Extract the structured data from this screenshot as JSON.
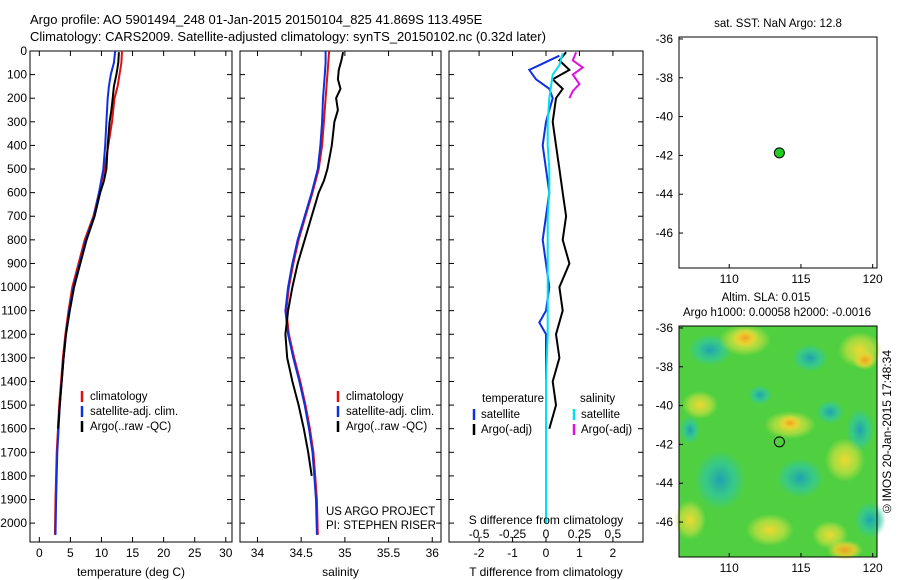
{
  "header": {
    "title_line1": "Argo profile: AO 5901494_248 01-Jan-2015 20150104_825 41.869S 113.495E",
    "title_line2": "Climatology: CARS2009. Satellite-adjusted climatology: synTS_20150102.nc (0.32d later)"
  },
  "credit": "US ARGO PROJECT",
  "credit_pi": "PI: STEPHEN RISER",
  "stamp": "©IMOS 20-Jan-2015 17:48:34",
  "colors": {
    "climatology": "#e01010",
    "satellite": "#1030e0",
    "argo": "#000000",
    "sal_sat": "#00e0f0",
    "sal_argo": "#e010e0",
    "map_dot": "#22cc22"
  },
  "chart_data": [
    {
      "id": "temperature",
      "type": "line",
      "xlabel": "temperature (deg C)",
      "ylabel": "",
      "xlim": [
        -1.5,
        31
      ],
      "ylim": [
        2080,
        0
      ],
      "xticks": [
        0,
        5,
        10,
        15,
        20,
        25,
        30
      ],
      "yticks": [
        0,
        100,
        200,
        300,
        400,
        500,
        600,
        700,
        800,
        900,
        1000,
        1100,
        1200,
        1300,
        1400,
        1500,
        1600,
        1700,
        1800,
        1900,
        2000
      ],
      "legend": [
        "climatology",
        "satellite-adj. clim.",
        "Argo(..raw -QC)"
      ],
      "series": [
        {
          "name": "climatology",
          "color": "#e01010",
          "x": [
            13.3,
            13.2,
            12.9,
            12.6,
            12.1,
            11.7,
            11.1,
            10.5,
            9.6,
            8.7,
            7.3,
            6.3,
            5.3,
            4.7,
            4.2,
            3.8,
            3.5,
            3.2,
            3.0,
            2.8,
            2.7,
            2.6,
            2.5
          ],
          "y": [
            0,
            50,
            100,
            150,
            200,
            300,
            400,
            500,
            600,
            700,
            800,
            900,
            1000,
            1100,
            1200,
            1300,
            1400,
            1500,
            1600,
            1700,
            1800,
            1900,
            2050
          ]
        },
        {
          "name": "satellite-adj. clim.",
          "color": "#1030e0",
          "x": [
            12.2,
            12.0,
            11.5,
            11.2,
            11.0,
            10.8,
            10.6,
            10.3,
            9.6,
            8.8,
            7.5,
            6.5,
            5.5,
            4.8,
            4.3,
            3.9,
            3.6,
            3.3,
            3.1,
            2.9,
            2.8,
            2.7,
            2.6
          ],
          "y": [
            0,
            50,
            100,
            150,
            200,
            300,
            400,
            500,
            600,
            700,
            800,
            900,
            1000,
            1100,
            1200,
            1300,
            1400,
            1500,
            1600,
            1700,
            1800,
            1900,
            2050
          ]
        },
        {
          "name": "Argo(..raw -QC)",
          "color": "#000000",
          "x": [
            12.8,
            12.7,
            12.4,
            12.0,
            11.8,
            11.6,
            11.3,
            11.0,
            10.8,
            10.4,
            9.8,
            8.9,
            7.6,
            6.6,
            5.6,
            4.9,
            4.3,
            3.9,
            3.6,
            3.3,
            3.0
          ],
          "y": [
            5,
            50,
            100,
            150,
            200,
            250,
            300,
            400,
            500,
            550,
            600,
            700,
            800,
            900,
            1000,
            1100,
            1200,
            1300,
            1400,
            1500,
            1600
          ]
        }
      ]
    },
    {
      "id": "salinity",
      "type": "line",
      "xlabel": "salinity",
      "ylabel": "",
      "xlim": [
        33.8,
        36.1
      ],
      "ylim": [
        2080,
        0
      ],
      "xticks": [
        34,
        34.5,
        35,
        35.5,
        36
      ],
      "xtick_labels": [
        "34",
        "34.5",
        "35",
        "35.5",
        "36"
      ],
      "legend": [
        "climatology",
        "satellite-adj. clim.",
        "Argo(..raw -QC)"
      ],
      "series": [
        {
          "name": "climatology",
          "color": "#e01010",
          "x": [
            34.82,
            34.81,
            34.8,
            34.79,
            34.78,
            34.76,
            34.74,
            34.7,
            34.63,
            34.55,
            34.47,
            34.41,
            34.36,
            34.33,
            34.36,
            34.42,
            34.49,
            34.55,
            34.6,
            34.64,
            34.66,
            34.68,
            34.69
          ],
          "y": [
            0,
            50,
            100,
            150,
            200,
            300,
            400,
            500,
            600,
            700,
            800,
            900,
            1000,
            1100,
            1200,
            1300,
            1400,
            1500,
            1600,
            1700,
            1800,
            1900,
            2050
          ]
        },
        {
          "name": "satellite-adj. clim.",
          "color": "#1030e0",
          "x": [
            34.78,
            34.78,
            34.77,
            34.76,
            34.75,
            34.74,
            34.72,
            34.69,
            34.62,
            34.54,
            34.46,
            34.4,
            34.35,
            34.32,
            34.35,
            34.41,
            34.48,
            34.54,
            34.59,
            34.63,
            34.65,
            34.67,
            34.68
          ],
          "y": [
            0,
            50,
            100,
            150,
            200,
            300,
            400,
            500,
            600,
            700,
            800,
            900,
            1000,
            1100,
            1200,
            1300,
            1400,
            1500,
            1600,
            1700,
            1800,
            1900,
            2050
          ]
        },
        {
          "name": "Argo(..raw -QC)",
          "color": "#000000",
          "x": [
            34.98,
            34.96,
            34.93,
            34.92,
            34.95,
            34.9,
            34.92,
            34.88,
            34.85,
            34.8,
            34.76,
            34.7,
            34.62,
            34.54,
            34.46,
            34.4,
            34.35,
            34.32,
            34.34,
            34.4,
            34.47,
            34.53,
            34.58,
            34.62
          ],
          "y": [
            5,
            40,
            80,
            120,
            160,
            200,
            250,
            300,
            400,
            500,
            550,
            600,
            700,
            800,
            900,
            1000,
            1100,
            1200,
            1300,
            1400,
            1500,
            1600,
            1700,
            1800
          ]
        }
      ]
    },
    {
      "id": "difference",
      "type": "line",
      "xlabel": "T difference from climatology",
      "xlabel2": "S difference from climatology",
      "xlim": [
        -2.9,
        2.9
      ],
      "ylim": [
        2080,
        0
      ],
      "xticks": [
        -2,
        -1,
        0,
        1,
        2
      ],
      "xticks_top": [
        -0.5,
        -0.25,
        0,
        0.25,
        0.5
      ],
      "xticks_top_labels": [
        "-0.5",
        "-0.25",
        "0",
        "0.25",
        "0.5"
      ],
      "legend_title_t": "temperature",
      "legend_title_s": "salinity",
      "legend": [
        "satellite",
        "Argo(-adj)"
      ],
      "series": [
        {
          "name": "T satellite",
          "color": "#1030e0",
          "x": [
            0.4,
            -0.2,
            -0.5,
            -0.3,
            0.1,
            0.2,
            0.0,
            -0.1,
            0.0,
            0.1,
            0.0,
            -0.1,
            0.0,
            0.1,
            0.0,
            -0.2,
            0.0,
            0.0,
            0.0,
            0.0,
            0.0,
            0.0
          ],
          "y": [
            20,
            60,
            80,
            120,
            160,
            200,
            300,
            400,
            500,
            600,
            700,
            800,
            900,
            1000,
            1100,
            1150,
            1200,
            1300,
            1400,
            1600,
            1800,
            2000
          ]
        },
        {
          "name": "T Argo(-adj)",
          "color": "#000000",
          "x": [
            0.6,
            0.4,
            0.7,
            0.2,
            0.5,
            0.3,
            0.2,
            0.3,
            0.4,
            0.5,
            0.6,
            0.5,
            0.7,
            0.4,
            0.5,
            0.3,
            0.4,
            0.2,
            0.3,
            0.2,
            0.1
          ],
          "y": [
            5,
            40,
            80,
            120,
            160,
            200,
            300,
            400,
            500,
            600,
            700,
            800,
            900,
            1000,
            1100,
            1200,
            1300,
            1400,
            1500,
            1550,
            1600
          ]
        },
        {
          "name": "S satellite",
          "color": "#00e0f0",
          "x": [
            0.5,
            0.4,
            0.2,
            0.15,
            0.1,
            0.05,
            0.05,
            0.1,
            0.1,
            0.05,
            0.05,
            0.05,
            0.05,
            0.05,
            0.05,
            0.0,
            0.0,
            0.0,
            0.0,
            0.0
          ],
          "y": [
            10,
            60,
            100,
            150,
            200,
            300,
            400,
            500,
            600,
            700,
            800,
            900,
            1000,
            1100,
            1200,
            1400,
            1600,
            1800,
            1900,
            2000
          ]
        },
        {
          "name": "S Argo(-adj)",
          "color": "#e010e0",
          "x": [
            0.9,
            0.8,
            1.1,
            0.8,
            1.0,
            0.8,
            0.7
          ],
          "y": [
            5,
            40,
            70,
            100,
            140,
            170,
            200
          ]
        }
      ]
    },
    {
      "id": "map_sst",
      "type": "scatter",
      "title": "sat. SST: NaN Argo: 12.8",
      "xlim": [
        106.5,
        120.3
      ],
      "ylim": [
        -47.8,
        -35.9
      ],
      "xticks": [
        110,
        115,
        120
      ],
      "yticks": [
        -36,
        -38,
        -40,
        -42,
        -44,
        -46
      ],
      "points": [
        {
          "x": 113.495,
          "y": -41.869
        }
      ]
    },
    {
      "id": "map_sla",
      "type": "heatmap",
      "title": "Altim. SLA: 0.015",
      "subtitle": "Argo h1000: 0.00058 h2000: -0.0016",
      "xlim": [
        106.5,
        120.3
      ],
      "ylim": [
        -47.8,
        -35.9
      ],
      "xticks": [
        110,
        115,
        120
      ],
      "yticks": [
        -36,
        -38,
        -40,
        -42,
        -44,
        -46
      ],
      "points": [
        {
          "x": 113.495,
          "y": -41.869
        }
      ]
    }
  ]
}
